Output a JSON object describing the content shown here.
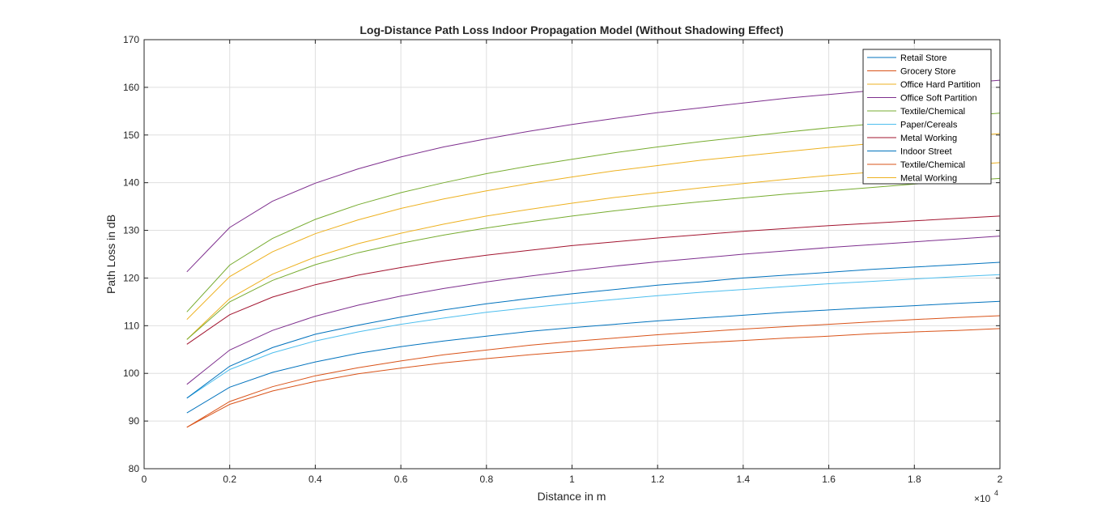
{
  "chart_data": {
    "type": "line",
    "title": "Log-Distance Path Loss Indoor Propagation Model (Without Shadowing Effect)",
    "xlabel": "Distance in m",
    "ylabel": "Path Loss in dB",
    "x_exponent_label": "×10",
    "x_exponent_power": "4",
    "xlim": [
      0,
      2
    ],
    "ylim": [
      80,
      170
    ],
    "x_ticks": [
      0,
      0.2,
      0.4,
      0.6,
      0.8,
      1,
      1.2,
      1.4,
      1.6,
      1.8,
      2
    ],
    "x_tick_labels": [
      "0",
      "0.2",
      "0.4",
      "0.6",
      "0.8",
      "1",
      "1.2",
      "1.4",
      "1.6",
      "1.8",
      "2"
    ],
    "y_ticks": [
      80,
      90,
      100,
      110,
      120,
      130,
      140,
      150,
      160,
      170
    ],
    "y_tick_labels": [
      "80",
      "90",
      "100",
      "110",
      "120",
      "130",
      "140",
      "150",
      "160",
      "170"
    ],
    "grid": true,
    "legend_position": "top-right",
    "x": [
      0.1,
      0.2,
      0.3,
      0.4,
      0.5,
      0.6,
      0.7,
      0.8,
      0.9,
      1.0,
      1.1,
      1.2,
      1.3,
      1.4,
      1.5,
      1.6,
      1.7,
      1.8,
      1.9,
      2.0
    ],
    "series": [
      {
        "name": "Retail Store",
        "color": "#0072BD",
        "values": [
          91.7,
          97.1,
          100.2,
          102.4,
          104.2,
          105.6,
          106.8,
          107.8,
          108.8,
          109.6,
          110.3,
          111.0,
          111.6,
          112.2,
          112.8,
          113.3,
          113.8,
          114.2,
          114.7,
          115.1
        ]
      },
      {
        "name": "Grocery Store",
        "color": "#D95319",
        "values": [
          88.7,
          94.1,
          97.2,
          99.5,
          101.2,
          102.6,
          103.9,
          104.9,
          105.9,
          106.7,
          107.4,
          108.1,
          108.7,
          109.3,
          109.8,
          110.3,
          110.8,
          111.3,
          111.7,
          112.1
        ]
      },
      {
        "name": "Office Hard Partition",
        "color": "#EDB120",
        "values": [
          111.3,
          120.3,
          125.5,
          129.3,
          132.2,
          134.6,
          136.6,
          138.3,
          139.8,
          141.2,
          142.5,
          143.6,
          144.7,
          145.6,
          146.5,
          147.4,
          148.2,
          148.9,
          149.6,
          150.3
        ]
      },
      {
        "name": "Office Soft Partition",
        "color": "#7E2F8E",
        "values": [
          121.3,
          130.6,
          136.1,
          139.9,
          142.9,
          145.4,
          147.5,
          149.2,
          150.8,
          152.2,
          153.5,
          154.7,
          155.7,
          156.7,
          157.7,
          158.5,
          159.3,
          160.1,
          160.8,
          161.5
        ]
      },
      {
        "name": "Textile/Chemical",
        "color": "#77AC30",
        "values": [
          112.9,
          122.7,
          128.3,
          132.3,
          135.4,
          137.9,
          140.0,
          141.9,
          143.5,
          144.9,
          146.3,
          147.5,
          148.6,
          149.6,
          150.6,
          151.5,
          152.3,
          153.1,
          153.9,
          154.6
        ]
      },
      {
        "name": "Paper/Cereals",
        "color": "#4DBEEE",
        "values": [
          94.8,
          100.8,
          104.3,
          106.8,
          108.7,
          110.3,
          111.6,
          112.8,
          113.8,
          114.7,
          115.5,
          116.3,
          117.0,
          117.6,
          118.2,
          118.8,
          119.3,
          119.8,
          120.3,
          120.7
        ]
      },
      {
        "name": "Metal Working",
        "color": "#A2142F",
        "values": [
          106.1,
          112.3,
          116.0,
          118.6,
          120.6,
          122.2,
          123.6,
          124.8,
          125.8,
          126.8,
          127.6,
          128.4,
          129.1,
          129.8,
          130.4,
          131.0,
          131.5,
          132.0,
          132.5,
          133.0
        ]
      },
      {
        "name": "Indoor Street",
        "color": "#0072BD",
        "values": [
          94.8,
          101.5,
          105.4,
          108.2,
          110.1,
          111.8,
          113.3,
          114.6,
          115.7,
          116.7,
          117.6,
          118.5,
          119.2,
          120.0,
          120.6,
          121.2,
          121.8,
          122.3,
          122.8,
          123.3
        ]
      },
      {
        "name": "Textile/Chemical",
        "color": "#D95319",
        "values": [
          88.7,
          93.5,
          96.3,
          98.3,
          99.9,
          101.1,
          102.2,
          103.1,
          103.9,
          104.6,
          105.3,
          105.9,
          106.4,
          106.9,
          107.4,
          107.8,
          108.3,
          108.7,
          109.0,
          109.4
        ]
      },
      {
        "name": "Metal Working",
        "color": "#EDB120",
        "values": [
          107.1,
          115.7,
          120.8,
          124.4,
          127.2,
          129.4,
          131.3,
          133.0,
          134.4,
          135.7,
          136.9,
          137.9,
          138.9,
          139.8,
          140.7,
          141.5,
          142.2,
          142.9,
          143.6,
          144.2
        ]
      },
      {
        "name": "",
        "color": "#7E2F8E",
        "values": [
          97.7,
          104.9,
          109.0,
          112.0,
          114.3,
          116.2,
          117.8,
          119.2,
          120.4,
          121.5,
          122.5,
          123.4,
          124.2,
          125.0,
          125.7,
          126.4,
          127.0,
          127.6,
          128.2,
          128.8
        ]
      },
      {
        "name": "",
        "color": "#77AC30",
        "values": [
          107.1,
          115.0,
          119.5,
          122.8,
          125.3,
          127.3,
          129.0,
          130.5,
          131.8,
          133.0,
          134.1,
          135.1,
          136.0,
          136.8,
          137.6,
          138.3,
          139.0,
          139.7,
          140.3,
          140.9
        ]
      }
    ]
  }
}
